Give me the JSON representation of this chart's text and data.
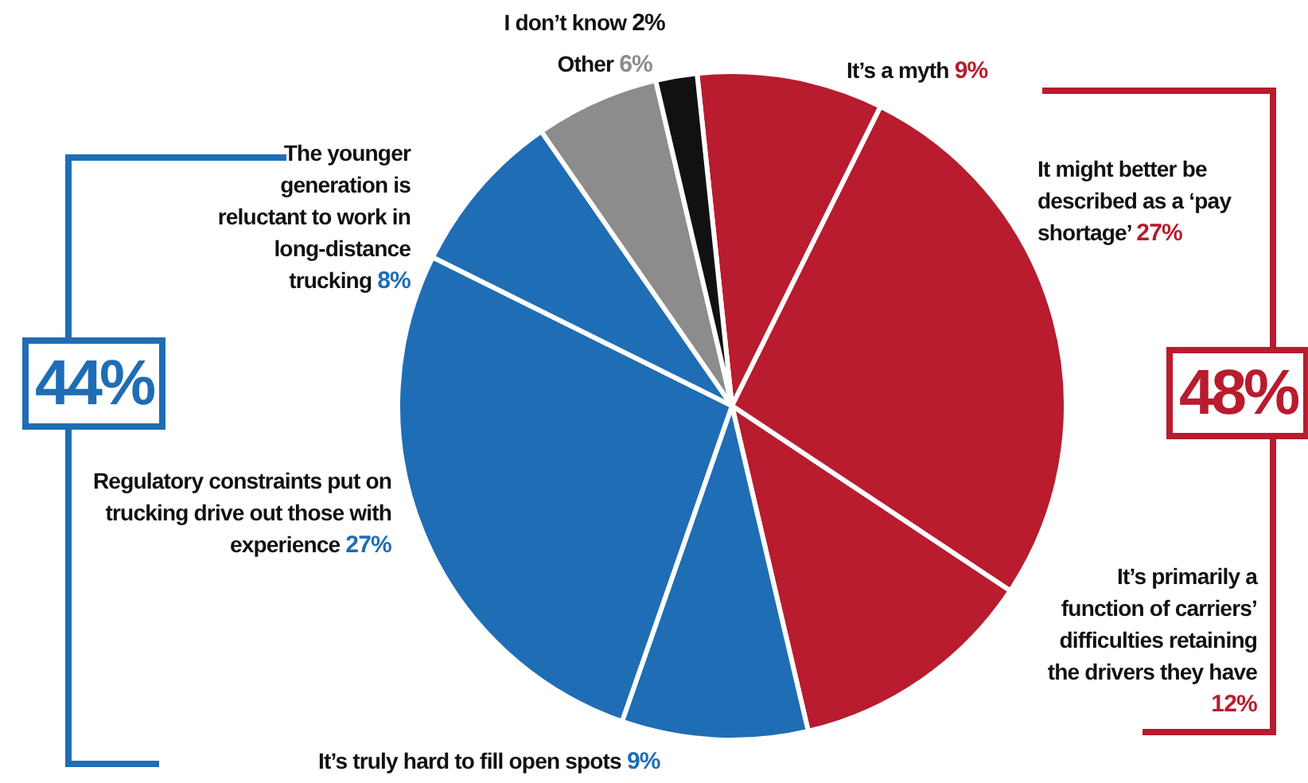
{
  "chart_data": {
    "type": "pie",
    "categories": [
      "It’s a myth",
      "It might better be described as a ‘pay shortage’",
      "It’s primarily a function of carriers’ difficulties retaining the drivers they have",
      "It’s truly hard to fill open spots",
      "Regulatory constraints put on trucking drive out those with experience",
      "The younger generation is reluctant to work in long-distance trucking",
      "Other",
      "I don’t know"
    ],
    "values": [
      9,
      27,
      12,
      9,
      27,
      8,
      6,
      2
    ],
    "value_labels": [
      "9%",
      "27%",
      "12%",
      "9%",
      "27%",
      "8%",
      "6%",
      "2%"
    ],
    "colors": [
      "#b81c2e",
      "#b81c2e",
      "#b81c2e",
      "#1f6db5",
      "#1f6db5",
      "#1f6db5",
      "#8c8c8c",
      "#111111"
    ],
    "annotations": [
      "44%",
      "48%"
    ],
    "legend": false
  }
}
